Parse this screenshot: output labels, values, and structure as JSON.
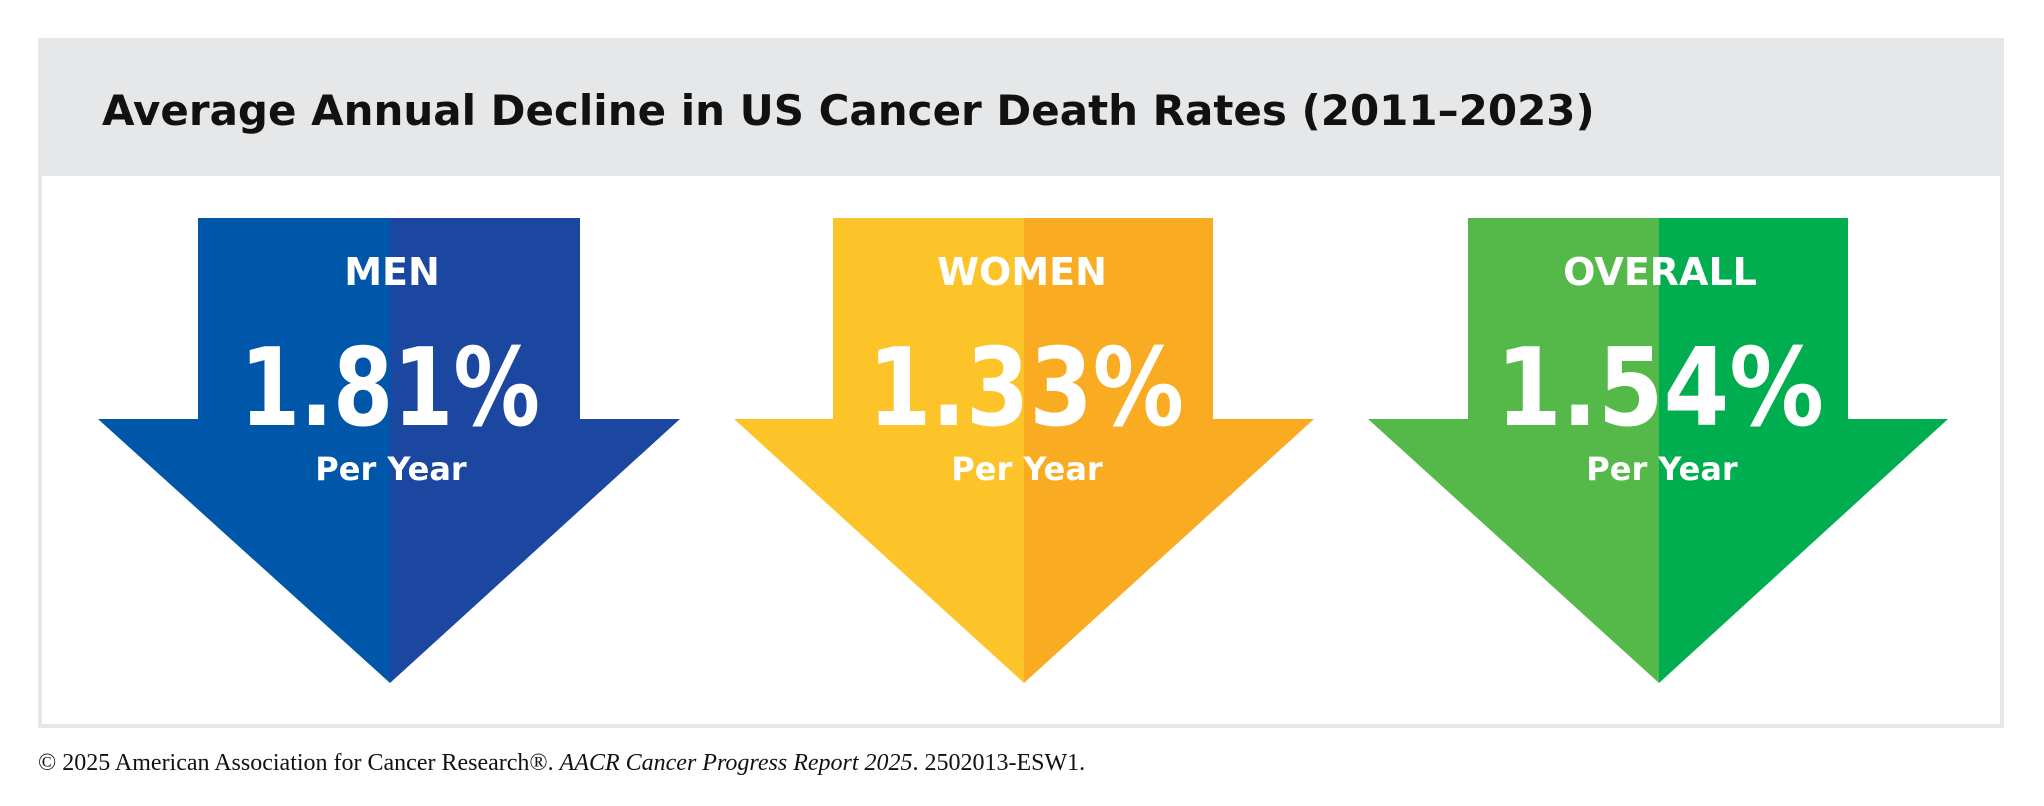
{
  "title": "Average Annual Decline in US Cancer Death Rates (2011–2023)",
  "chart_data": {
    "type": "bar",
    "title": "Average Annual Decline in US Cancer Death Rates (2011–2023)",
    "categories": [
      "MEN",
      "WOMEN",
      "OVERALL"
    ],
    "values": [
      1.81,
      1.33,
      1.54
    ],
    "unit": "Per Year",
    "value_labels": [
      "1.81%",
      "1.33%",
      "1.54%"
    ],
    "colors": {
      "men": [
        "#0056a9",
        "#1c47a0"
      ],
      "women": [
        "#fdc42a",
        "#f9ab22"
      ],
      "overall": [
        "#55b949",
        "#00ad4f"
      ]
    }
  },
  "arrows": [
    {
      "label": "MEN",
      "value": "1.81%",
      "sublabel": "Per Year"
    },
    {
      "label": "WOMEN",
      "value": "1.33%",
      "sublabel": "Per Year"
    },
    {
      "label": "OVERALL",
      "value": "1.54%",
      "sublabel": "Per Year"
    }
  ],
  "footer": {
    "prefix": "© 2025 American Association for Cancer Research®. ",
    "report": "AACR Cancer Progress Report 2025",
    "suffix": ". 2502013-ESW1."
  }
}
